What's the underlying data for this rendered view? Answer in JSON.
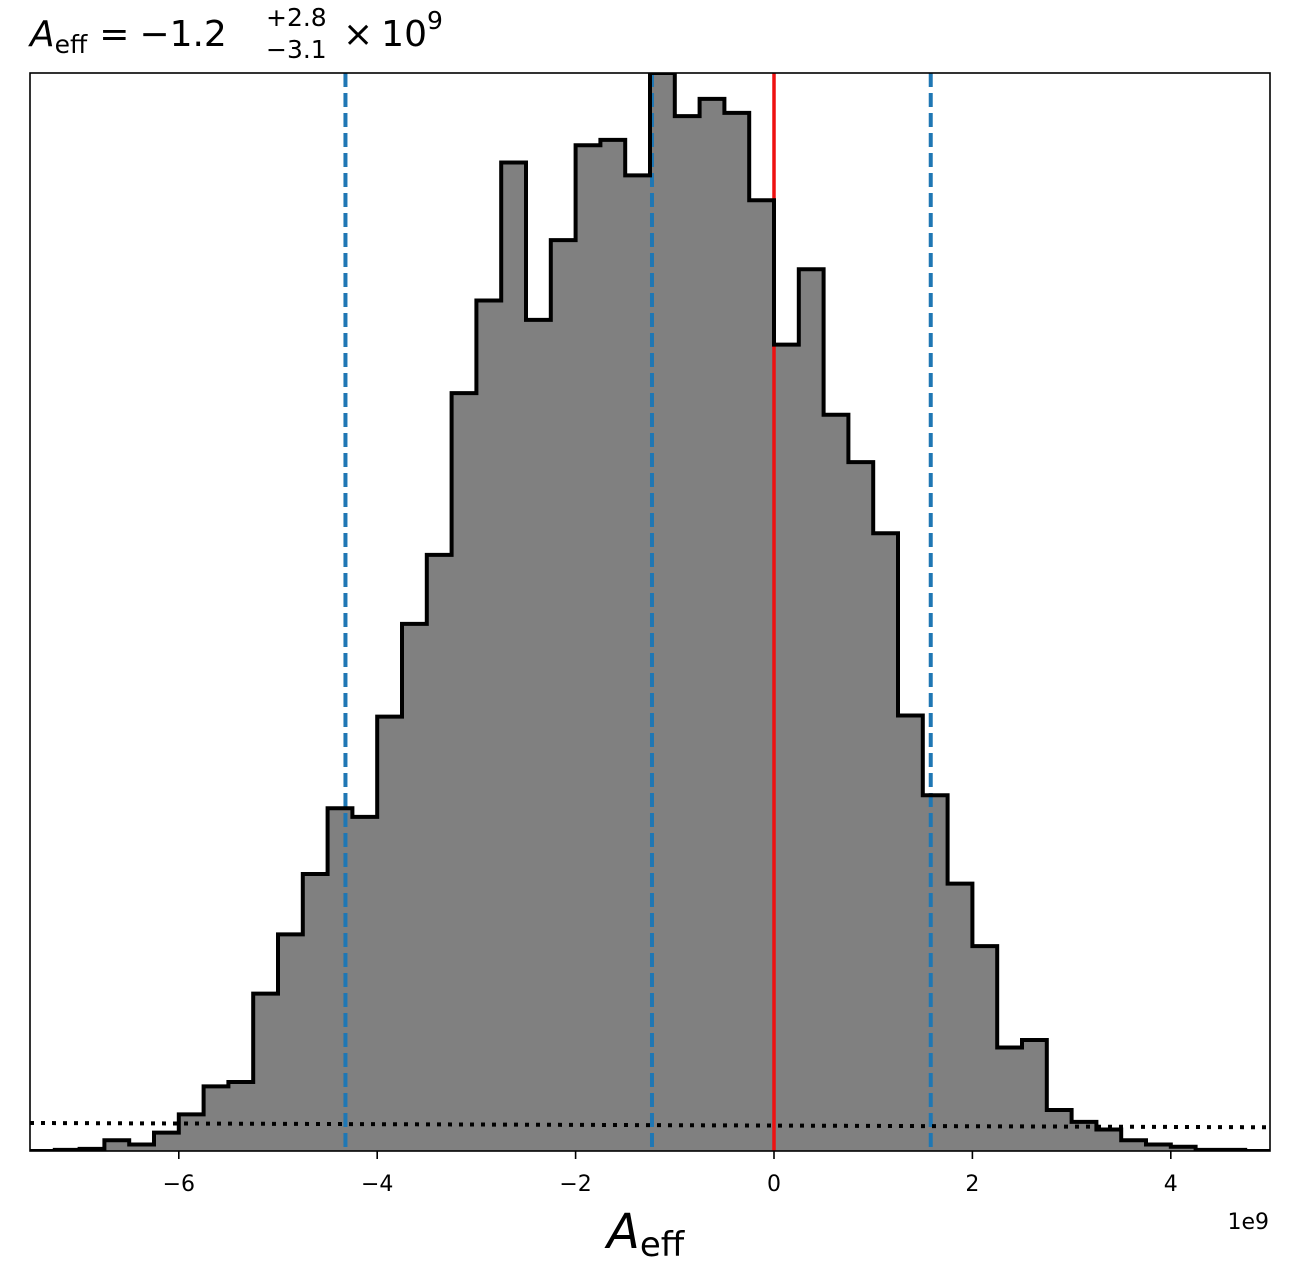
{
  "chart_data": {
    "type": "histogram",
    "title": {
      "var_base": "A",
      "var_sub": "eff",
      "equals": "=",
      "value": "−1.2",
      "upper": "+2.8",
      "lower": "−3.1",
      "times": "×",
      "base": "10",
      "exponent": "9"
    },
    "xlabel": {
      "base": "A",
      "sub": "eff"
    },
    "offset_text": "1e9",
    "xlim": [
      -7.5,
      5.0
    ],
    "ylim": [
      0,
      1.0
    ],
    "xticks": [
      -6,
      -4,
      -2,
      0,
      2,
      4
    ],
    "xtick_labels": [
      "−6",
      "−4",
      "−2",
      "0",
      "2",
      "4"
    ],
    "x_scale_factor": 1000000000,
    "bins": {
      "edges": [
        -7.5,
        -7.25,
        -7.0,
        -6.75,
        -6.5,
        -6.25,
        -6.0,
        -5.75,
        -5.5,
        -5.25,
        -5.0,
        -4.75,
        -4.5,
        -4.25,
        -4.0,
        -3.75,
        -3.5,
        -3.25,
        -3.0,
        -2.75,
        -2.5,
        -2.25,
        -2.0,
        -1.75,
        -1.5,
        -1.25,
        -1.0,
        -0.75,
        -0.5,
        -0.25,
        0.0,
        0.25,
        0.5,
        0.75,
        1.0,
        1.25,
        1.5,
        1.75,
        2.0,
        2.25,
        2.5,
        2.75,
        3.0,
        3.25,
        3.5,
        3.75,
        4.0,
        4.25,
        4.5,
        4.75,
        5.0
      ],
      "heights": [
        0.0,
        0.001,
        0.002,
        0.01,
        0.006,
        0.017,
        0.034,
        0.06,
        0.064,
        0.146,
        0.201,
        0.257,
        0.318,
        0.31,
        0.403,
        0.489,
        0.553,
        0.703,
        0.789,
        0.917,
        0.771,
        0.845,
        0.933,
        0.938,
        0.905,
        1.0,
        0.96,
        0.976,
        0.963,
        0.882,
        0.748,
        0.818,
        0.683,
        0.639,
        0.573,
        0.404,
        0.33,
        0.248,
        0.19,
        0.096,
        0.103,
        0.038,
        0.027,
        0.02,
        0.01,
        0.006,
        0.004,
        0.001,
        0.001,
        0.0
      ]
    },
    "histogram_style": {
      "fill": "#808080",
      "edge": "#000000"
    },
    "vlines": [
      {
        "x": -4.32,
        "style": "dashed",
        "color": "#1f77b4"
      },
      {
        "x": -1.23,
        "style": "dashed",
        "color": "#1f77b4"
      },
      {
        "x": 1.58,
        "style": "dashed",
        "color": "#1f77b4"
      },
      {
        "x": 0.0,
        "style": "solid",
        "color": "#ee1111"
      }
    ],
    "prior_line": {
      "style": "dotted",
      "color": "#000000",
      "x": [
        -7.5,
        5.0
      ],
      "y": [
        0.026,
        0.022
      ]
    }
  }
}
